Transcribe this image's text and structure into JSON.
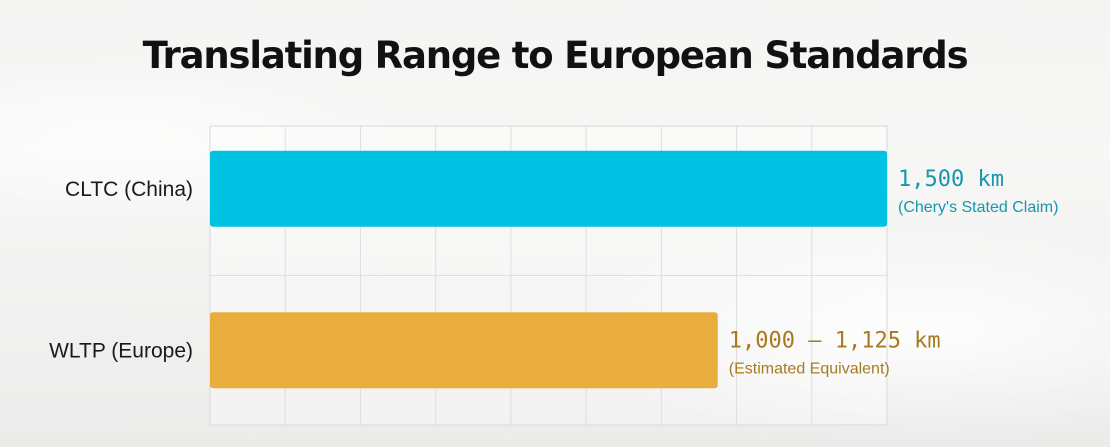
{
  "title": "Translating Range to European Standards",
  "chart_data": {
    "type": "bar",
    "orientation": "horizontal",
    "title": "Translating Range to European Standards",
    "categories": [
      "CLTC (China)",
      "WLTP (Europe)"
    ],
    "values": [
      1500,
      1125
    ],
    "value_labels": [
      "1,500 km",
      "1,000 – 1,125 km"
    ],
    "value_sublabels": [
      "(Chery's Stated Claim)",
      "(Estimated Equivalent)"
    ],
    "colors": [
      "#00c2e3",
      "#e9ad3e"
    ],
    "label_colors": [
      "#1797ad",
      "#a87a1f"
    ],
    "xlim": [
      0,
      1500
    ],
    "grid": true,
    "legend": "none",
    "xlabel": "",
    "ylabel": ""
  }
}
